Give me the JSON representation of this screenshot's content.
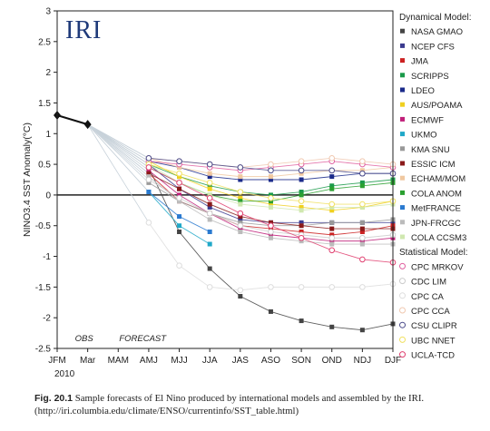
{
  "logo": "IRI",
  "chart_data": {
    "type": "line",
    "ylabel": "NINO3.4 SST Anomaly(°C)",
    "ylim": [
      -2.5,
      3
    ],
    "yticks": [
      "3",
      "2.5",
      "2",
      "1.5",
      "1",
      "0.5",
      "0",
      "-0.5",
      "-1",
      "-1.5",
      "-2",
      "-2.5"
    ],
    "categories": [
      "JFM",
      "Mar",
      "MAM",
      "AMJ",
      "MJJ",
      "JJA",
      "JAS",
      "ASO",
      "SON",
      "OND",
      "NDJ",
      "DJF"
    ],
    "year_label": "2010",
    "obs_label": "OBS",
    "forecast_label": "FORECAST",
    "observed": [
      1.3,
      1.15
    ],
    "legend_dynamical_title": "Dynamical Model:",
    "legend_statistical_title": "Statistical Model:",
    "series": [
      {
        "name": "NASA GMAO",
        "group": "dyn",
        "marker": "sq",
        "color": "#444444",
        "values": [
          null,
          null,
          null,
          0.45,
          -0.6,
          -1.2,
          -1.65,
          -1.9,
          -2.05,
          -2.15,
          -2.2,
          -2.1
        ]
      },
      {
        "name": "NCEP CFS",
        "group": "dyn",
        "marker": "sq",
        "color": "#3b3b8f",
        "values": [
          null,
          null,
          null,
          0.5,
          0.1,
          -0.2,
          -0.4,
          -0.45,
          -0.45,
          -0.45,
          -0.45,
          -0.45
        ]
      },
      {
        "name": "JMA",
        "group": "dyn",
        "marker": "sq",
        "color": "#cc2222",
        "values": [
          null,
          null,
          null,
          0.35,
          -0.1,
          -0.3,
          -0.5,
          -0.55,
          -0.6,
          -0.65,
          -0.6,
          -0.5
        ]
      },
      {
        "name": "SCRIPPS",
        "group": "dyn",
        "marker": "sq",
        "color": "#1a9a4a",
        "values": [
          null,
          null,
          null,
          0.5,
          0.3,
          0.15,
          0.05,
          0.0,
          0.05,
          0.15,
          0.2,
          0.25
        ]
      },
      {
        "name": "LDEO",
        "group": "dyn",
        "marker": "sq",
        "color": "#1a2a8a",
        "values": [
          null,
          null,
          null,
          0.55,
          0.45,
          0.3,
          0.25,
          0.25,
          0.25,
          0.3,
          0.35,
          0.35
        ]
      },
      {
        "name": "AUS/POAMA",
        "group": "dyn",
        "marker": "sq",
        "color": "#f0d020",
        "values": [
          null,
          null,
          null,
          0.55,
          0.3,
          0.1,
          -0.05,
          -0.15,
          -0.2,
          -0.25,
          -0.2,
          -0.1
        ]
      },
      {
        "name": "ECMWF",
        "group": "dyn",
        "marker": "sq",
        "color": "#c0207a",
        "values": [
          null,
          null,
          null,
          0.4,
          0.0,
          -0.3,
          -0.55,
          -0.65,
          -0.7,
          -0.75,
          -0.75,
          -0.7
        ]
      },
      {
        "name": "UKMO",
        "group": "dyn",
        "marker": "sq",
        "color": "#20a8c8",
        "values": [
          null,
          null,
          null,
          0.05,
          -0.5,
          -0.8,
          null,
          null,
          null,
          null,
          null,
          null
        ]
      },
      {
        "name": "KMA SNU",
        "group": "dyn",
        "marker": "sq",
        "color": "#999999",
        "values": [
          null,
          null,
          null,
          0.2,
          -0.1,
          -0.3,
          -0.45,
          -0.5,
          -0.5,
          -0.45,
          -0.45,
          -0.4
        ]
      },
      {
        "name": "ESSIC ICM",
        "group": "dyn",
        "marker": "sq",
        "color": "#8a1a1a",
        "values": [
          null,
          null,
          null,
          0.35,
          0.1,
          -0.15,
          -0.35,
          -0.45,
          -0.5,
          -0.55,
          -0.55,
          -0.55
        ]
      },
      {
        "name": "ECHAM/MOM",
        "group": "dyn",
        "marker": "sq",
        "color": "#f0c8a0",
        "values": [
          null,
          null,
          null,
          0.6,
          0.45,
          0.35,
          0.3,
          0.3,
          0.35,
          0.4,
          0.4,
          0.45
        ]
      },
      {
        "name": "COLA ANOM",
        "group": "dyn",
        "marker": "sq",
        "color": "#2aa030",
        "values": [
          null,
          null,
          null,
          0.45,
          0.2,
          0.0,
          -0.1,
          -0.1,
          0.0,
          0.1,
          0.15,
          0.2
        ]
      },
      {
        "name": "MetFRANCE",
        "group": "dyn",
        "marker": "sq",
        "color": "#2a7ad0",
        "values": [
          null,
          null,
          null,
          0.05,
          -0.35,
          -0.6,
          null,
          null,
          null,
          null,
          null,
          null
        ]
      },
      {
        "name": "JPN-FRCGC",
        "group": "dyn",
        "marker": "sq",
        "color": "#bbbbbb",
        "values": [
          null,
          null,
          null,
          0.3,
          -0.1,
          -0.4,
          -0.6,
          -0.7,
          -0.75,
          -0.8,
          -0.8,
          -0.8
        ]
      },
      {
        "name": "COLA CCSM3",
        "group": "dyn",
        "marker": "sq",
        "color": "#d0e8b0",
        "values": [
          null,
          null,
          null,
          0.5,
          0.2,
          0.0,
          -0.15,
          -0.2,
          -0.25,
          -0.2,
          -0.2,
          -0.15
        ]
      },
      {
        "name": "CPC MRKOV",
        "group": "stat",
        "marker": "circ",
        "color": "#e060a0",
        "values": [
          null,
          null,
          null,
          0.55,
          0.5,
          0.45,
          0.4,
          0.45,
          0.5,
          0.55,
          0.5,
          0.45
        ]
      },
      {
        "name": "CDC LIM",
        "group": "stat",
        "marker": "circ",
        "color": "#cccccc",
        "values": [
          null,
          null,
          null,
          0.25,
          -0.05,
          -0.3,
          -0.5,
          -0.6,
          -0.65,
          -0.7,
          -0.7,
          -0.65
        ]
      },
      {
        "name": "CPC CA",
        "group": "stat",
        "marker": "circ",
        "color": "#dddddd",
        "values": [
          null,
          null,
          null,
          -0.45,
          -1.15,
          -1.5,
          -1.55,
          -1.5,
          -1.5,
          -1.5,
          -1.5,
          -1.45
        ]
      },
      {
        "name": "CPC CCA",
        "group": "stat",
        "marker": "circ",
        "color": "#f0c8b0",
        "values": [
          null,
          null,
          null,
          0.6,
          0.55,
          0.5,
          0.45,
          0.5,
          0.55,
          0.6,
          0.55,
          0.5
        ]
      },
      {
        "name": "CSU CLIPR",
        "group": "stat",
        "marker": "circ",
        "color": "#4a4a8a",
        "values": [
          null,
          null,
          null,
          0.6,
          0.55,
          0.5,
          0.45,
          0.4,
          0.4,
          0.4,
          0.35,
          0.35
        ]
      },
      {
        "name": "UBC NNET",
        "group": "stat",
        "marker": "circ",
        "color": "#f0e060",
        "values": [
          null,
          null,
          null,
          0.5,
          0.35,
          0.2,
          0.05,
          -0.05,
          -0.1,
          -0.15,
          -0.15,
          -0.1
        ]
      },
      {
        "name": "UCLA-TCD",
        "group": "stat",
        "marker": "circ",
        "color": "#e04070",
        "values": [
          null,
          null,
          null,
          0.45,
          0.2,
          -0.05,
          -0.3,
          -0.5,
          -0.7,
          -0.9,
          -1.05,
          -1.1
        ]
      }
    ]
  },
  "caption": {
    "label": "Fig. 20.1",
    "text": "Sample forecasts of El Nino produced by international models and assembled by the IRI. (http://iri.columbia.edu/climate/ENSO/currentinfo/SST_table.html)"
  }
}
